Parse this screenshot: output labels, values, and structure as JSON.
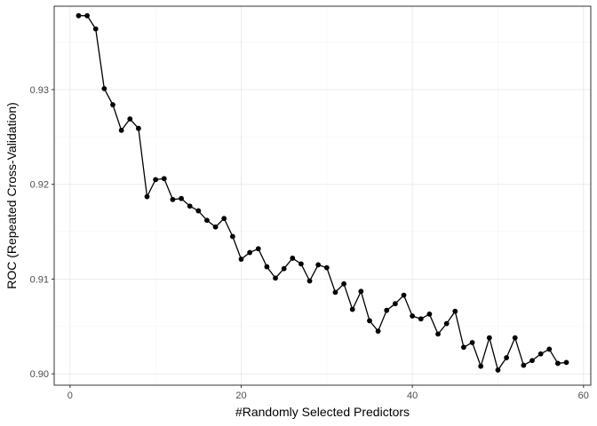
{
  "chart_data": {
    "type": "line",
    "title": "",
    "xlabel": "#Randomly Selected Predictors",
    "ylabel": "ROC (Repeated Cross-Validation)",
    "xlim": [
      -1.85,
      60.85
    ],
    "ylim": [
      0.8988,
      0.9388
    ],
    "x_ticks": [
      0,
      20,
      40,
      60
    ],
    "x_tick_labels": [
      "0",
      "20",
      "40",
      "60"
    ],
    "y_ticks": [
      0.9,
      0.91,
      0.92,
      0.93
    ],
    "y_tick_labels": [
      "0.90",
      "0.91",
      "0.92",
      "0.93"
    ],
    "grid": true,
    "legend": "none",
    "colors": {
      "line": "#000000",
      "points": "#000000",
      "panel_border": "#333333",
      "grid_major": "#ebebeb",
      "grid_minor": "#f5f5f5"
    },
    "x": [
      1,
      2,
      3,
      4,
      5,
      6,
      7,
      8,
      9,
      10,
      11,
      12,
      13,
      14,
      15,
      16,
      17,
      18,
      19,
      20,
      21,
      22,
      23,
      24,
      25,
      26,
      27,
      28,
      29,
      30,
      31,
      32,
      33,
      34,
      35,
      36,
      37,
      38,
      39,
      40,
      41,
      42,
      43,
      44,
      45,
      46,
      47,
      48,
      49,
      50,
      51,
      52,
      53,
      54,
      55,
      56,
      57,
      58
    ],
    "y": [
      0.9378,
      0.9378,
      0.9364,
      0.9301,
      0.9284,
      0.9257,
      0.9269,
      0.9259,
      0.9187,
      0.9205,
      0.9206,
      0.9184,
      0.9185,
      0.9177,
      0.9172,
      0.9162,
      0.9155,
      0.9164,
      0.9145,
      0.9121,
      0.9128,
      0.9132,
      0.9113,
      0.9101,
      0.9111,
      0.9122,
      0.9116,
      0.9098,
      0.9115,
      0.9112,
      0.9086,
      0.9095,
      0.9068,
      0.9087,
      0.9056,
      0.9045,
      0.9067,
      0.9074,
      0.9083,
      0.9061,
      0.9058,
      0.9063,
      0.9042,
      0.9053,
      0.9066,
      0.9028,
      0.9033,
      0.9008,
      0.9038,
      0.9004,
      0.9017,
      0.9038,
      0.9009,
      0.9014,
      0.9021,
      0.9026,
      0.9011,
      0.9012
    ]
  }
}
